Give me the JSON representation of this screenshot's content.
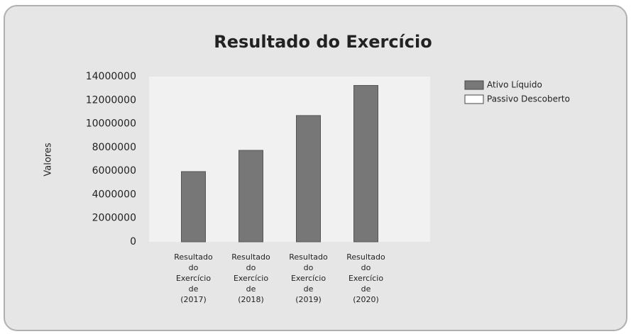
{
  "chart_data": {
    "type": "bar",
    "title": "Resultado do Exercício",
    "y_label": "Valores",
    "categories": [
      "Resultado do Exercício de (2017)",
      "Resultado do Exercício de (2018)",
      "Resultado do Exercício de (2019)",
      "Resultado do Exercício de (2020)"
    ],
    "series": [
      {
        "name": "Ativo Líquido",
        "color": "#777777",
        "values": [
          5950000,
          7750000,
          10700000,
          13250000
        ]
      },
      {
        "name": "Passivo Descoberto",
        "color": "#ffffff",
        "values": [
          0,
          0,
          0,
          0
        ]
      }
    ],
    "ylim": [
      0,
      14000000
    ],
    "yticks": [
      0,
      2000000,
      4000000,
      6000000,
      8000000,
      10000000,
      12000000,
      14000000
    ],
    "legend": "right"
  }
}
